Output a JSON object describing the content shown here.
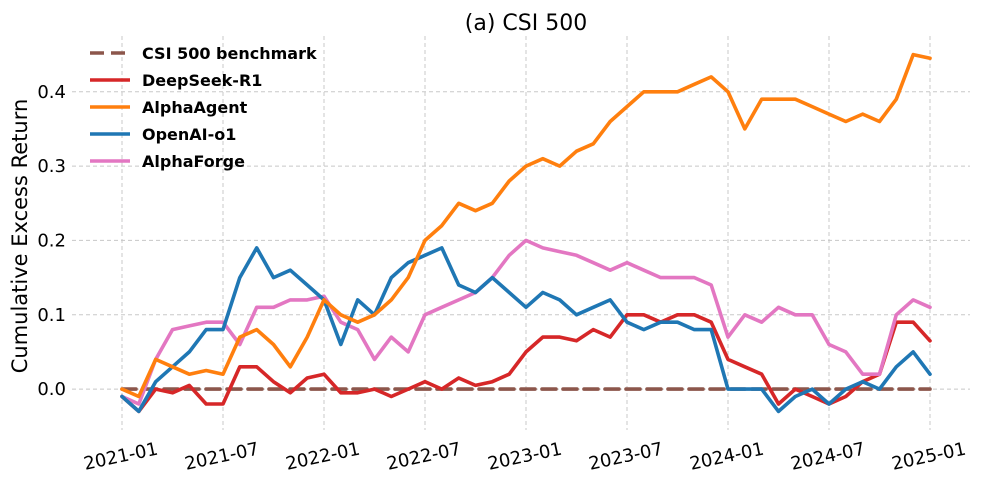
{
  "chart_data": {
    "type": "line",
    "title": "(a) CSI 500",
    "xlabel": "",
    "ylabel": "Cumulative Excess Return",
    "x_ticks": [
      "2021-01",
      "2021-07",
      "2022-01",
      "2022-07",
      "2023-01",
      "2023-07",
      "2024-01",
      "2024-07",
      "2025-01"
    ],
    "y_ticks": [
      "0.0",
      "0.1",
      "0.2",
      "0.3",
      "0.4"
    ],
    "xlim": [
      "2021-01",
      "2025-01"
    ],
    "ylim": [
      -0.055,
      0.475
    ],
    "grid": true,
    "legend_position": "top-left",
    "series": [
      {
        "name": "CSI 500 benchmark",
        "color": "#8c564b",
        "dashed": true,
        "x": [
          "2021-01",
          "2025-01"
        ],
        "values": [
          0.0,
          0.0
        ]
      },
      {
        "name": "DeepSeek-R1",
        "color": "#d62728",
        "dashed": false,
        "x": [
          "2021-01",
          "2021-02",
          "2021-03",
          "2021-04",
          "2021-05",
          "2021-06",
          "2021-07",
          "2021-08",
          "2021-09",
          "2021-10",
          "2021-11",
          "2021-12",
          "2022-01",
          "2022-02",
          "2022-03",
          "2022-04",
          "2022-05",
          "2022-06",
          "2022-07",
          "2022-08",
          "2022-09",
          "2022-10",
          "2022-11",
          "2022-12",
          "2023-01",
          "2023-02",
          "2023-03",
          "2023-04",
          "2023-05",
          "2023-06",
          "2023-07",
          "2023-08",
          "2023-09",
          "2023-10",
          "2023-11",
          "2023-12",
          "2024-01",
          "2024-02",
          "2024-03",
          "2024-04",
          "2024-05",
          "2024-06",
          "2024-07",
          "2024-08",
          "2024-09",
          "2024-10",
          "2024-11",
          "2024-12",
          "2025-01"
        ],
        "values": [
          -0.01,
          -0.03,
          0.0,
          -0.005,
          0.005,
          -0.02,
          -0.02,
          0.03,
          0.03,
          0.01,
          -0.005,
          0.015,
          0.02,
          -0.005,
          -0.005,
          0.0,
          -0.01,
          0.0,
          0.01,
          0.0,
          0.015,
          0.005,
          0.01,
          0.02,
          0.05,
          0.07,
          0.07,
          0.065,
          0.08,
          0.07,
          0.1,
          0.1,
          0.09,
          0.1,
          0.1,
          0.09,
          0.04,
          0.03,
          0.02,
          -0.02,
          0.0,
          -0.01,
          -0.02,
          -0.01,
          0.01,
          0.02,
          0.09,
          0.09,
          0.065
        ]
      },
      {
        "name": "AlphaAgent",
        "color": "#ff7f0e",
        "dashed": false,
        "x": [
          "2021-01",
          "2021-02",
          "2021-03",
          "2021-04",
          "2021-05",
          "2021-06",
          "2021-07",
          "2021-08",
          "2021-09",
          "2021-10",
          "2021-11",
          "2021-12",
          "2022-01",
          "2022-02",
          "2022-03",
          "2022-04",
          "2022-05",
          "2022-06",
          "2022-07",
          "2022-08",
          "2022-09",
          "2022-10",
          "2022-11",
          "2022-12",
          "2023-01",
          "2023-02",
          "2023-03",
          "2023-04",
          "2023-05",
          "2023-06",
          "2023-07",
          "2023-08",
          "2023-09",
          "2023-10",
          "2023-11",
          "2023-12",
          "2024-01",
          "2024-02",
          "2024-03",
          "2024-04",
          "2024-05",
          "2024-06",
          "2024-07",
          "2024-08",
          "2024-09",
          "2024-10",
          "2024-11",
          "2024-12",
          "2025-01"
        ],
        "values": [
          0.0,
          -0.01,
          0.04,
          0.03,
          0.02,
          0.025,
          0.02,
          0.07,
          0.08,
          0.06,
          0.03,
          0.07,
          0.12,
          0.1,
          0.09,
          0.1,
          0.12,
          0.15,
          0.2,
          0.22,
          0.25,
          0.24,
          0.25,
          0.28,
          0.3,
          0.31,
          0.3,
          0.32,
          0.33,
          0.36,
          0.38,
          0.4,
          0.4,
          0.4,
          0.41,
          0.42,
          0.4,
          0.35,
          0.39,
          0.39,
          0.39,
          0.38,
          0.37,
          0.36,
          0.37,
          0.36,
          0.39,
          0.45,
          0.445
        ]
      },
      {
        "name": "OpenAI-o1",
        "color": "#1f77b4",
        "dashed": false,
        "x": [
          "2021-01",
          "2021-02",
          "2021-03",
          "2021-04",
          "2021-05",
          "2021-06",
          "2021-07",
          "2021-08",
          "2021-09",
          "2021-10",
          "2021-11",
          "2021-12",
          "2022-01",
          "2022-02",
          "2022-03",
          "2022-04",
          "2022-05",
          "2022-06",
          "2022-07",
          "2022-08",
          "2022-09",
          "2022-10",
          "2022-11",
          "2022-12",
          "2023-01",
          "2023-02",
          "2023-03",
          "2023-04",
          "2023-05",
          "2023-06",
          "2023-07",
          "2023-08",
          "2023-09",
          "2023-10",
          "2023-11",
          "2023-12",
          "2024-01",
          "2024-02",
          "2024-03",
          "2024-04",
          "2024-05",
          "2024-06",
          "2024-07",
          "2024-08",
          "2024-09",
          "2024-10",
          "2024-11",
          "2024-12",
          "2025-01"
        ],
        "values": [
          -0.01,
          -0.03,
          0.01,
          0.03,
          0.05,
          0.08,
          0.08,
          0.15,
          0.19,
          0.15,
          0.16,
          0.14,
          0.12,
          0.06,
          0.12,
          0.1,
          0.15,
          0.17,
          0.18,
          0.19,
          0.14,
          0.13,
          0.15,
          0.13,
          0.11,
          0.13,
          0.12,
          0.1,
          0.11,
          0.12,
          0.09,
          0.08,
          0.09,
          0.09,
          0.08,
          0.08,
          0.0,
          0.0,
          0.0,
          -0.03,
          -0.01,
          0.0,
          -0.02,
          0.0,
          0.01,
          0.0,
          0.03,
          0.05,
          0.02
        ]
      },
      {
        "name": "AlphaForge",
        "color": "#e377c2",
        "dashed": false,
        "x": [
          "2021-01",
          "2021-02",
          "2021-03",
          "2021-04",
          "2021-05",
          "2021-06",
          "2021-07",
          "2021-08",
          "2021-09",
          "2021-10",
          "2021-11",
          "2021-12",
          "2022-01",
          "2022-02",
          "2022-03",
          "2022-04",
          "2022-05",
          "2022-06",
          "2022-07",
          "2022-08",
          "2022-09",
          "2022-10",
          "2022-11",
          "2022-12",
          "2023-01",
          "2023-02",
          "2023-03",
          "2023-04",
          "2023-05",
          "2023-06",
          "2023-07",
          "2023-08",
          "2023-09",
          "2023-10",
          "2023-11",
          "2023-12",
          "2024-01",
          "2024-02",
          "2024-03",
          "2024-04",
          "2024-05",
          "2024-06",
          "2024-07",
          "2024-08",
          "2024-09",
          "2024-10",
          "2024-11",
          "2024-12",
          "2025-01"
        ],
        "values": [
          -0.01,
          -0.02,
          0.04,
          0.08,
          0.085,
          0.09,
          0.09,
          0.06,
          0.11,
          0.11,
          0.12,
          0.12,
          0.125,
          0.09,
          0.08,
          0.04,
          0.07,
          0.05,
          0.1,
          0.11,
          0.12,
          0.13,
          0.15,
          0.18,
          0.2,
          0.19,
          0.185,
          0.18,
          0.17,
          0.16,
          0.17,
          0.16,
          0.15,
          0.15,
          0.15,
          0.14,
          0.07,
          0.1,
          0.09,
          0.11,
          0.1,
          0.1,
          0.06,
          0.05,
          0.02,
          0.02,
          0.1,
          0.12,
          0.11
        ]
      }
    ]
  }
}
